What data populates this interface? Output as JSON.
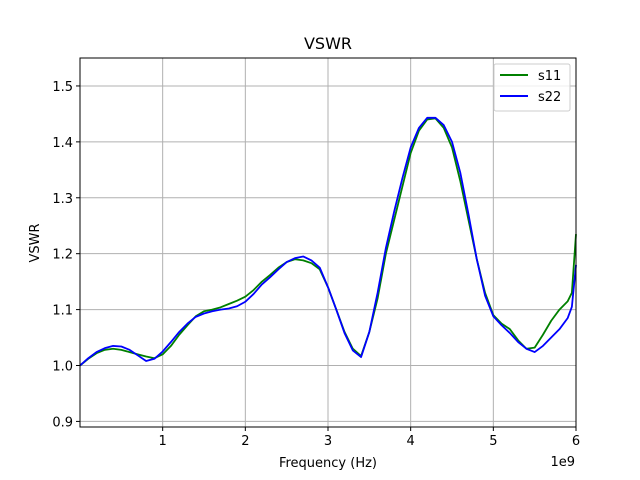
{
  "chart_data": {
    "type": "line",
    "title": "VSWR",
    "xlabel": "Frequency (Hz)",
    "ylabel": "VSWR",
    "ylabel_color": "#008000",
    "x_offset_text": "1e9",
    "xlim": [
      0,
      6
    ],
    "ylim": [
      0.89,
      1.55
    ],
    "xticks": [
      1,
      2,
      3,
      4,
      5,
      6
    ],
    "xtick_labels": [
      "1",
      "2",
      "3",
      "4",
      "5",
      "6"
    ],
    "yticks": [
      0.9,
      1.0,
      1.1,
      1.2,
      1.3,
      1.4,
      1.5
    ],
    "ytick_labels": [
      "0.9",
      "1.0",
      "1.1",
      "1.2",
      "1.3",
      "1.4",
      "1.5"
    ],
    "grid": true,
    "legend_position": "top-right",
    "series": [
      {
        "name": "s11",
        "color": "#008000",
        "x": [
          0.0,
          0.1,
          0.2,
          0.3,
          0.4,
          0.5,
          0.6,
          0.7,
          0.8,
          0.9,
          1.0,
          1.1,
          1.2,
          1.3,
          1.4,
          1.5,
          1.6,
          1.7,
          1.8,
          1.9,
          2.0,
          2.1,
          2.2,
          2.3,
          2.4,
          2.5,
          2.6,
          2.7,
          2.8,
          2.9,
          3.0,
          3.1,
          3.2,
          3.3,
          3.4,
          3.5,
          3.6,
          3.7,
          3.8,
          3.9,
          4.0,
          4.1,
          4.2,
          4.3,
          4.4,
          4.5,
          4.6,
          4.7,
          4.8,
          4.9,
          5.0,
          5.1,
          5.2,
          5.3,
          5.4,
          5.5,
          5.6,
          5.7,
          5.8,
          5.9,
          5.95,
          6.0
        ],
        "y": [
          1.0,
          1.012,
          1.022,
          1.028,
          1.03,
          1.028,
          1.024,
          1.02,
          1.016,
          1.013,
          1.02,
          1.035,
          1.055,
          1.072,
          1.088,
          1.097,
          1.1,
          1.104,
          1.11,
          1.116,
          1.123,
          1.135,
          1.15,
          1.162,
          1.175,
          1.185,
          1.19,
          1.188,
          1.183,
          1.172,
          1.14,
          1.1,
          1.06,
          1.03,
          1.017,
          1.06,
          1.12,
          1.2,
          1.26,
          1.32,
          1.38,
          1.42,
          1.44,
          1.442,
          1.425,
          1.39,
          1.33,
          1.26,
          1.19,
          1.13,
          1.09,
          1.075,
          1.065,
          1.045,
          1.03,
          1.032,
          1.055,
          1.08,
          1.1,
          1.115,
          1.13,
          1.235
        ]
      },
      {
        "name": "s22",
        "color": "#0000ff",
        "x": [
          0.0,
          0.1,
          0.2,
          0.3,
          0.4,
          0.5,
          0.6,
          0.7,
          0.8,
          0.9,
          1.0,
          1.1,
          1.2,
          1.3,
          1.4,
          1.5,
          1.6,
          1.7,
          1.8,
          1.9,
          2.0,
          2.1,
          2.2,
          2.3,
          2.4,
          2.5,
          2.6,
          2.7,
          2.8,
          2.9,
          3.0,
          3.1,
          3.2,
          3.3,
          3.4,
          3.5,
          3.6,
          3.7,
          3.8,
          3.9,
          4.0,
          4.1,
          4.2,
          4.3,
          4.4,
          4.5,
          4.6,
          4.7,
          4.8,
          4.9,
          5.0,
          5.1,
          5.2,
          5.3,
          5.4,
          5.5,
          5.6,
          5.7,
          5.8,
          5.9,
          5.95,
          6.0
        ],
        "y": [
          1.0,
          1.013,
          1.024,
          1.031,
          1.035,
          1.034,
          1.028,
          1.018,
          1.008,
          1.012,
          1.025,
          1.042,
          1.06,
          1.075,
          1.087,
          1.093,
          1.097,
          1.1,
          1.102,
          1.106,
          1.114,
          1.128,
          1.145,
          1.158,
          1.172,
          1.185,
          1.192,
          1.195,
          1.188,
          1.175,
          1.14,
          1.1,
          1.058,
          1.027,
          1.015,
          1.06,
          1.13,
          1.21,
          1.275,
          1.335,
          1.39,
          1.425,
          1.443,
          1.443,
          1.43,
          1.4,
          1.345,
          1.27,
          1.19,
          1.125,
          1.088,
          1.072,
          1.058,
          1.042,
          1.03,
          1.024,
          1.035,
          1.05,
          1.065,
          1.085,
          1.105,
          1.18
        ]
      }
    ]
  }
}
